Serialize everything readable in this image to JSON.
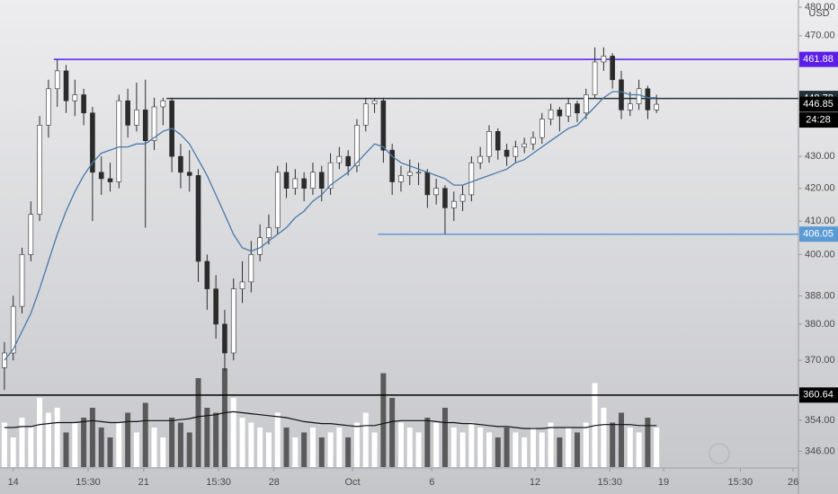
{
  "chart_data": {
    "type": "candlestick",
    "currency": "USD",
    "log_scale": true,
    "grid": false,
    "ylim": [
      342,
      480
    ],
    "yticks": [
      {
        "value": 480,
        "label": "480.00"
      },
      {
        "value": 470,
        "label": "470.00"
      },
      {
        "value": 430,
        "label": "430.00"
      },
      {
        "value": 420,
        "label": "420.00"
      },
      {
        "value": 410,
        "label": "410.00"
      },
      {
        "value": 400,
        "label": "400.00"
      },
      {
        "value": 388,
        "label": "388.00"
      },
      {
        "value": 380,
        "label": "380.00"
      },
      {
        "value": 370,
        "label": "370.00"
      },
      {
        "value": 354,
        "label": "354.00"
      },
      {
        "value": 346,
        "label": "346.00"
      }
    ],
    "xlim": [
      -0.5,
      90.1
    ],
    "xticks": [
      {
        "value": 1,
        "label": "14"
      },
      {
        "value": 9.5,
        "label": "15:30"
      },
      {
        "value": 15.8,
        "label": "21"
      },
      {
        "value": 24.3,
        "label": "15:30"
      },
      {
        "value": 30.6,
        "label": "28"
      },
      {
        "value": 39.5,
        "label": "Oct"
      },
      {
        "value": 48.5,
        "label": "6"
      },
      {
        "value": 60.2,
        "label": "12"
      },
      {
        "value": 68.7,
        "label": "15:30"
      },
      {
        "value": 74.8,
        "label": "19"
      },
      {
        "value": 83.5,
        "label": "15:30"
      },
      {
        "value": 89.5,
        "label": "26"
      }
    ],
    "up_color": "#ffffff",
    "down_color": "#2b2b2b",
    "open": [
      368,
      372,
      385,
      400,
      412,
      440,
      452,
      458,
      448,
      450,
      444,
      425,
      423,
      422,
      448,
      440,
      445,
      435,
      446,
      448,
      430,
      425,
      424,
      398,
      390,
      380,
      372,
      390,
      392,
      400,
      405,
      408,
      425,
      420,
      423,
      420,
      425,
      420,
      428,
      430,
      427,
      440,
      447,
      448,
      432,
      422,
      424,
      425,
      425,
      418,
      420,
      414,
      416,
      418,
      428,
      430,
      438,
      432,
      430,
      433,
      434,
      436,
      442,
      445,
      443,
      447,
      444,
      450,
      461,
      463,
      455,
      445,
      447,
      452,
      445
    ],
    "high": [
      375,
      388,
      402,
      416,
      443,
      455,
      461.88,
      460,
      455,
      452,
      446,
      430,
      428,
      450,
      452,
      454,
      455,
      449,
      449,
      449,
      434,
      432,
      426,
      400,
      394,
      384,
      393,
      398,
      404,
      409,
      412,
      427,
      428,
      426,
      425,
      428,
      427,
      431,
      433,
      432,
      442,
      449,
      449,
      449,
      434,
      427,
      429,
      428,
      426,
      423,
      421,
      419,
      421,
      430,
      433,
      440,
      439,
      434,
      435,
      436,
      438,
      444,
      447,
      446,
      449,
      448,
      452,
      466,
      466,
      464,
      458,
      451,
      455,
      453,
      450
    ],
    "low": [
      362,
      370,
      383,
      398,
      410,
      436,
      446,
      444,
      443,
      440,
      410,
      418,
      419,
      420,
      436,
      438,
      408,
      432,
      440,
      425,
      420,
      419,
      392,
      384,
      376,
      367,
      370,
      386,
      389,
      398,
      403,
      406,
      417,
      418,
      416,
      418,
      416,
      418,
      426,
      424,
      425,
      438,
      444,
      428,
      418,
      419,
      421,
      421,
      414,
      415,
      406.05,
      410,
      413,
      416,
      426,
      428,
      429,
      427,
      428,
      431,
      432,
      434,
      440,
      438,
      441,
      441,
      442,
      449,
      458,
      452,
      442,
      443,
      445,
      442,
      444
    ],
    "close": [
      372,
      385,
      400,
      412,
      440,
      452,
      458,
      448,
      450,
      444,
      425,
      423,
      422,
      448,
      440,
      445,
      435,
      446,
      448,
      430,
      425,
      424,
      398,
      390,
      380,
      372,
      390,
      392,
      400,
      405,
      408,
      425,
      420,
      423,
      420,
      425,
      420,
      428,
      430,
      427,
      440,
      447,
      448,
      432,
      422,
      424,
      425,
      425,
      418,
      420,
      414,
      416,
      418,
      428,
      430,
      438,
      432,
      430,
      433,
      434,
      436,
      442,
      445,
      443,
      447,
      444,
      450,
      461,
      463,
      455,
      445,
      447,
      452,
      445,
      446.85
    ],
    "ma": {
      "color": "#4a78a8",
      "values": [
        370,
        373,
        378,
        383,
        390,
        398,
        406,
        413,
        419,
        424,
        428,
        431,
        432,
        433,
        433,
        434,
        434,
        436,
        438,
        439,
        437,
        434,
        429,
        424,
        418,
        412,
        406,
        402,
        401,
        402,
        404,
        406,
        408,
        411,
        413,
        416,
        418,
        421,
        423,
        425,
        428,
        431,
        434,
        433,
        430,
        428,
        427,
        426,
        425,
        424,
        423,
        421,
        421,
        422,
        423,
        424,
        425,
        426,
        428,
        429,
        431,
        433,
        435,
        437,
        439,
        440,
        443,
        446,
        449,
        451,
        451,
        450,
        450,
        449,
        449
      ]
    },
    "volume": {
      "lim": [
        0,
        100
      ],
      "up_color": "#ffffff",
      "down_color": "#5a5a5a",
      "ma_color": "#111111",
      "values": [
        45,
        30,
        50,
        40,
        70,
        55,
        60,
        35,
        45,
        50,
        60,
        40,
        30,
        45,
        55,
        35,
        65,
        40,
        30,
        50,
        45,
        35,
        90,
        60,
        55,
        100,
        70,
        50,
        45,
        40,
        35,
        55,
        40,
        30,
        35,
        40,
        30,
        35,
        40,
        30,
        45,
        55,
        35,
        95,
        70,
        45,
        40,
        35,
        50,
        45,
        60,
        40,
        35,
        45,
        40,
        35,
        30,
        40,
        35,
        30,
        40,
        35,
        45,
        30,
        40,
        35,
        45,
        85,
        60,
        45,
        55,
        40,
        35,
        50,
        40
      ],
      "ma": [
        40,
        40,
        41,
        41,
        43,
        44,
        45,
        45,
        45,
        46,
        47,
        46,
        45,
        45,
        46,
        46,
        47,
        47,
        47,
        47,
        48,
        49,
        51,
        52,
        53,
        55,
        56,
        55,
        54,
        53,
        52,
        51,
        50,
        48,
        46,
        45,
        44,
        44,
        43,
        42,
        41,
        42,
        42,
        44,
        46,
        47,
        47,
        47,
        47,
        46,
        45,
        45,
        44,
        44,
        43,
        42,
        41,
        41,
        40,
        39,
        39,
        39,
        40,
        40,
        40,
        40,
        40,
        42,
        43,
        43,
        43,
        43,
        42,
        42,
        42
      ]
    },
    "levels": [
      {
        "value": 461.88,
        "color": "#5a1ee8",
        "from": 5.6
      },
      {
        "value": 448.78,
        "color": "#24313a",
        "from": 18.4
      },
      {
        "value": 406.05,
        "color": "#5b9bd5",
        "from": 42.4
      },
      {
        "value": 360.64,
        "color": "#000000",
        "from": -0.5
      }
    ],
    "last_price": 446.85,
    "countdown": "24:28"
  }
}
